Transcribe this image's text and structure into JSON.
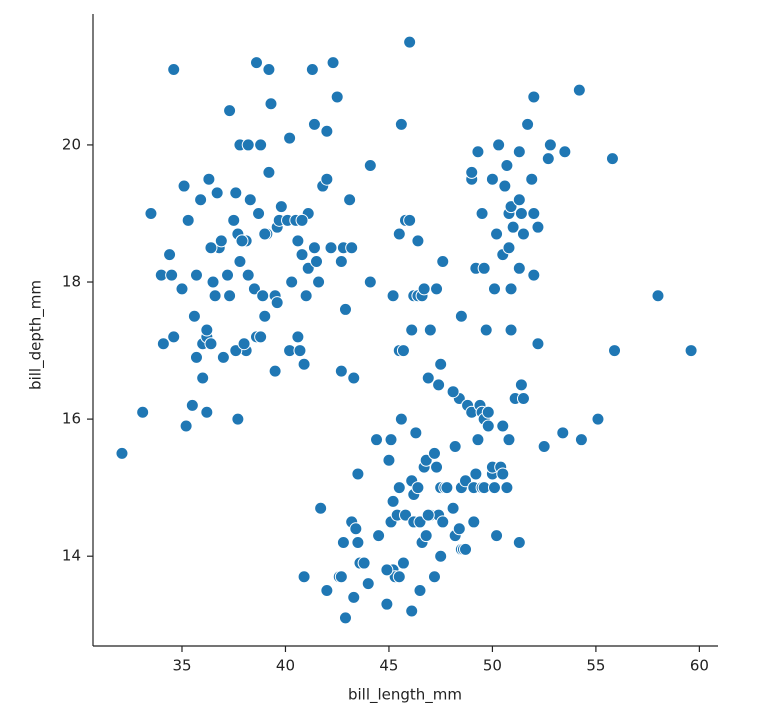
{
  "chart_data": {
    "type": "scatter",
    "xlabel": "bill_length_mm",
    "ylabel": "bill_depth_mm",
    "color": "#1f77b4",
    "xlim": [
      30.7,
      60.9
    ],
    "ylim": [
      12.69,
      21.91
    ],
    "xticks": [
      35,
      40,
      45,
      50,
      55,
      60
    ],
    "yticks": [
      14,
      16,
      18,
      20
    ],
    "x": [
      32.1,
      33.1,
      33.5,
      34.0,
      34.1,
      34.4,
      34.5,
      34.6,
      34.6,
      35.0,
      35.1,
      35.2,
      35.3,
      35.5,
      35.6,
      35.7,
      35.7,
      35.9,
      36.0,
      36.0,
      36.2,
      36.2,
      36.4,
      36.2,
      36.3,
      36.5,
      36.6,
      36.7,
      36.8,
      36.9,
      37.0,
      37.2,
      37.3,
      37.3,
      37.5,
      37.6,
      37.7,
      37.8,
      37.8,
      37.9,
      38.1,
      38.1,
      38.2,
      38.2,
      38.5,
      38.6,
      38.6,
      38.7,
      38.8,
      38.8,
      38.9,
      39.0,
      39.1,
      39.2,
      39.2,
      39.3,
      39.5,
      39.5,
      39.6,
      39.7,
      39.8,
      40.1,
      40.2,
      40.3,
      40.5,
      40.6,
      40.7,
      40.8,
      40.9,
      41.0,
      41.1,
      41.1,
      41.3,
      41.4,
      41.5,
      41.6,
      41.8,
      42.0,
      42.2,
      42.3,
      42.5,
      42.7,
      42.8,
      42.9,
      43.1,
      43.2,
      44.1,
      44.1,
      45.6,
      46.0,
      45.8,
      40.6,
      39.6,
      37.6,
      38.0,
      36.4,
      37.7,
      37.9,
      38.3,
      39.0,
      40.2,
      41.4,
      42.0,
      43.3,
      42.7,
      40.8,
      40.9,
      41.7,
      42.0,
      42.6,
      42.7,
      42.8,
      42.9,
      43.2,
      43.3,
      43.4,
      43.5,
      43.5,
      43.6,
      43.8,
      44.0,
      44.4,
      44.5,
      44.9,
      45.0,
      45.1,
      45.2,
      45.2,
      45.3,
      45.4,
      45.5,
      45.5,
      45.7,
      45.8,
      46.1,
      46.1,
      46.2,
      46.2,
      46.3,
      46.4,
      46.5,
      46.5,
      46.6,
      46.7,
      46.8,
      46.8,
      47.0,
      47.2,
      47.2,
      47.3,
      47.4,
      47.5,
      47.5,
      47.6,
      47.7,
      47.8,
      48.1,
      48.2,
      48.4,
      48.4,
      48.5,
      48.5,
      48.6,
      48.7,
      48.7,
      48.8,
      49.0,
      49.1,
      49.1,
      49.2,
      49.3,
      49.4,
      49.5,
      49.5,
      49.6,
      49.6,
      49.8,
      49.8,
      50.0,
      50.0,
      50.1,
      50.2,
      50.4,
      50.5,
      50.5,
      50.7,
      50.8,
      51.1,
      51.3,
      51.5,
      52.5,
      53.4,
      54.3,
      55.1,
      55.9,
      59.6,
      45.1,
      44.9,
      46.9,
      48.2,
      47.4,
      46.2,
      45.5,
      45.6,
      46.4,
      45.2,
      45.5,
      45.7,
      46.0,
      46.1,
      46.4,
      46.6,
      46.7,
      46.9,
      47.0,
      47.5,
      47.6,
      48.1,
      48.5,
      49.0,
      49.0,
      49.2,
      49.3,
      49.5,
      49.6,
      49.7,
      50.0,
      50.1,
      50.2,
      50.3,
      50.5,
      50.6,
      50.7,
      50.8,
      50.8,
      50.9,
      50.9,
      51.0,
      51.3,
      51.3,
      51.3,
      51.4,
      51.5,
      51.7,
      51.9,
      52.0,
      52.0,
      52.0,
      52.2,
      52.2,
      52.7,
      52.8,
      53.5,
      54.2,
      55.8,
      58.0,
      51.4,
      50.9,
      47.3
    ],
    "values": [
      15.5,
      16.1,
      19.0,
      18.1,
      17.1,
      18.4,
      18.1,
      21.1,
      17.2,
      17.9,
      19.4,
      15.9,
      18.9,
      16.2,
      17.5,
      16.9,
      18.1,
      19.2,
      17.1,
      16.6,
      17.2,
      16.1,
      17.1,
      17.3,
      19.5,
      18.0,
      17.8,
      19.3,
      18.5,
      18.6,
      16.9,
      18.1,
      17.8,
      20.5,
      18.9,
      19.3,
      18.7,
      18.3,
      20.0,
      18.6,
      18.6,
      17.0,
      18.1,
      20.0,
      17.9,
      21.2,
      17.2,
      19.0,
      17.2,
      20.0,
      17.8,
      17.5,
      18.7,
      19.6,
      21.1,
      20.6,
      16.7,
      17.8,
      18.8,
      18.9,
      19.1,
      18.9,
      17.0,
      18.0,
      18.9,
      18.6,
      17.0,
      18.4,
      16.8,
      17.8,
      19.0,
      18.2,
      21.1,
      18.5,
      18.3,
      18.0,
      19.4,
      19.5,
      18.5,
      21.2,
      20.7,
      18.3,
      18.5,
      17.6,
      19.2,
      18.5,
      19.7,
      18.0,
      20.3,
      21.5,
      18.9,
      17.2,
      17.7,
      17.0,
      17.1,
      18.5,
      16.0,
      18.6,
      19.2,
      18.7,
      20.1,
      20.3,
      20.2,
      16.6,
      16.7,
      18.9,
      13.7,
      14.7,
      13.5,
      13.7,
      13.7,
      14.2,
      13.1,
      14.5,
      13.4,
      14.4,
      14.2,
      15.2,
      13.9,
      13.9,
      13.6,
      15.7,
      14.3,
      13.3,
      15.4,
      14.5,
      13.8,
      14.8,
      13.7,
      14.6,
      13.7,
      15.0,
      13.9,
      14.6,
      13.2,
      15.1,
      14.5,
      14.9,
      15.8,
      15.0,
      14.5,
      13.5,
      14.2,
      15.3,
      14.3,
      15.4,
      14.6,
      13.7,
      15.5,
      15.3,
      14.6,
      14.0,
      15.0,
      14.5,
      15.0,
      15.0,
      14.7,
      14.3,
      14.4,
      16.3,
      14.1,
      15.0,
      14.1,
      14.1,
      15.1,
      16.2,
      16.1,
      14.5,
      15.0,
      15.2,
      15.7,
      16.2,
      15.0,
      16.1,
      15.0,
      16.0,
      15.9,
      16.1,
      15.2,
      15.3,
      15.0,
      14.3,
      15.3,
      15.2,
      15.9,
      15.0,
      15.7,
      16.3,
      14.2,
      16.3,
      15.6,
      15.8,
      15.7,
      16.0,
      17.0,
      17.0,
      15.7,
      13.8,
      14.6,
      15.6,
      16.5,
      17.8,
      17.0,
      16.0,
      17.8,
      17.8,
      18.7,
      17.0,
      18.9,
      17.3,
      18.6,
      17.8,
      17.9,
      16.6,
      17.3,
      16.8,
      18.3,
      16.4,
      17.5,
      19.5,
      19.6,
      18.2,
      19.9,
      19.0,
      18.2,
      17.3,
      19.5,
      17.9,
      18.7,
      20.0,
      18.4,
      19.4,
      19.7,
      18.5,
      19.0,
      17.9,
      19.1,
      18.8,
      18.2,
      19.2,
      19.9,
      19.0,
      18.7,
      20.3,
      19.5,
      18.1,
      19.0,
      20.7,
      18.8,
      17.1,
      19.8,
      20.0,
      19.9,
      20.8,
      19.8,
      17.8,
      16.5,
      17.3,
      17.9
    ]
  }
}
